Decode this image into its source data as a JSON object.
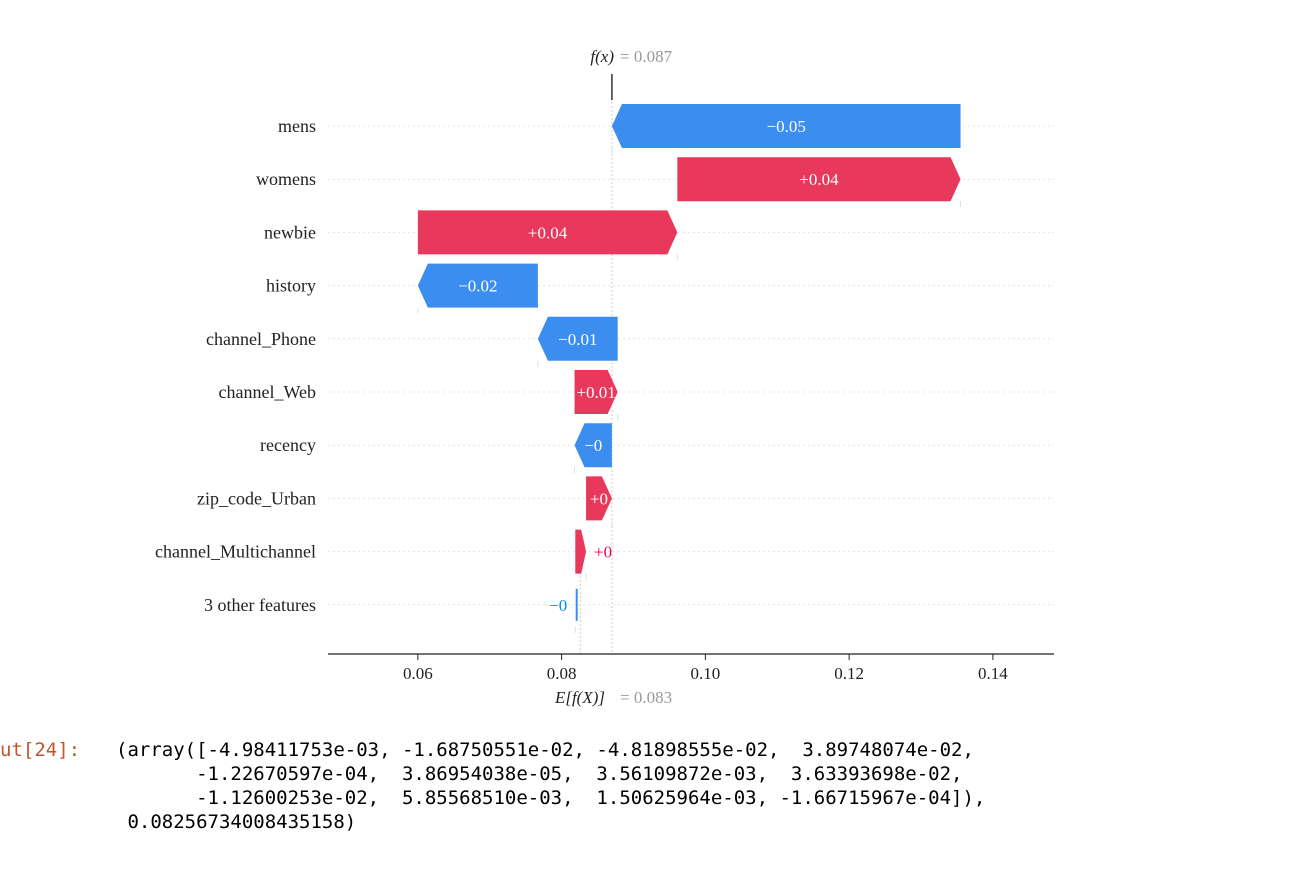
{
  "chart_data": {
    "type": "waterfall",
    "fx_label": "f(x)",
    "fx_value": "= 0.087",
    "base_label": "E[f(X)]",
    "base_value": "= 0.083",
    "base": 0.0826,
    "final": 0.087,
    "xlim": [
      0.0475,
      0.1485
    ],
    "xticks": [
      0.06,
      0.08,
      0.1,
      0.12,
      0.14
    ],
    "xtick_labels": [
      "0.06",
      "0.08",
      "0.10",
      "0.12",
      "0.14"
    ],
    "features": [
      {
        "name": "mens",
        "start": 0.1355,
        "end": 0.087,
        "label": "−0.05",
        "sign": "neg"
      },
      {
        "name": "womens",
        "start": 0.0961,
        "end": 0.1355,
        "label": "+0.04",
        "sign": "pos"
      },
      {
        "name": "newbie",
        "start": 0.06,
        "end": 0.0961,
        "label": "+0.04",
        "sign": "pos"
      },
      {
        "name": "history",
        "start": 0.0767,
        "end": 0.06,
        "label": "−0.02",
        "sign": "neg"
      },
      {
        "name": "channel_Phone",
        "start": 0.0878,
        "end": 0.0767,
        "label": "−0.01",
        "sign": "neg"
      },
      {
        "name": "channel_Web",
        "start": 0.0818,
        "end": 0.0878,
        "label": "+0.01",
        "sign": "pos"
      },
      {
        "name": "recency",
        "start": 0.087,
        "end": 0.0818,
        "label": "−0",
        "sign": "neg"
      },
      {
        "name": "zip_code_Urban",
        "start": 0.0834,
        "end": 0.087,
        "label": "+0",
        "sign": "pos"
      },
      {
        "name": "channel_Multichannel",
        "start": 0.0819,
        "end": 0.0834,
        "label": "+0",
        "sign": "pos"
      },
      {
        "name": "3 other features",
        "start": 0.0821,
        "end": 0.0819,
        "label": "−0",
        "sign": "neg"
      }
    ],
    "colors": {
      "pos": "#ff0051",
      "neg": "#008bfb",
      "pos_fill": "#e8385b",
      "neg_fill": "#3b8ef0"
    }
  },
  "output": {
    "prompt": "ut[24]:",
    "lines": [
      "(array([-4.98411753e-03, -1.68750551e-02, -4.81898555e-02,  3.89748074e-02,",
      "       -1.22670597e-04,  3.86954038e-05,  3.56109872e-03,  3.63393698e-02,",
      "       -1.12600253e-02,  5.85568510e-03,  1.50625964e-03, -1.66715967e-04]),",
      " 0.08256734008435158)"
    ]
  }
}
